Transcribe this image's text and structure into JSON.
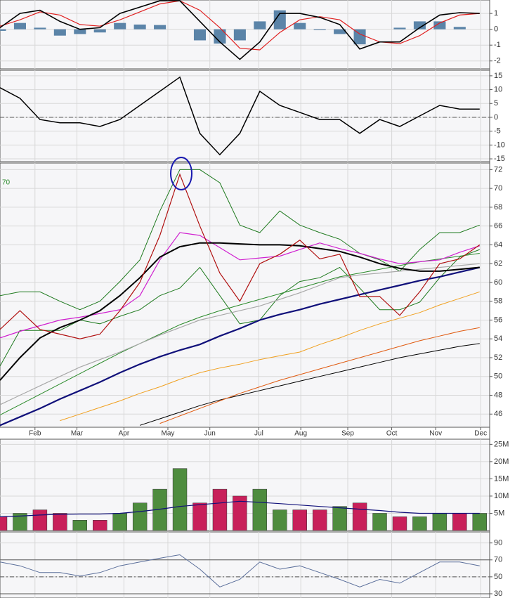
{
  "chart_data": [
    {
      "type": "line",
      "xlim": [
        0,
        49
      ],
      "ylim": [
        -2.5,
        1.85
      ],
      "yticks": [
        1,
        0,
        -1,
        -2
      ],
      "x": [
        0,
        2,
        4,
        6,
        8,
        10,
        12,
        14,
        16,
        18,
        20,
        22,
        24,
        26,
        28,
        30,
        32,
        34,
        36,
        38,
        40,
        42,
        44,
        46,
        48
      ],
      "ref_lines": [],
      "series": [
        {
          "type": "bar",
          "color": "#5b84a8",
          "values": [
            -0.1,
            0.4,
            0.1,
            -0.4,
            -0.3,
            -0.2,
            0.4,
            0.3,
            0.27,
            0,
            -0.7,
            -0.9,
            -0.7,
            0.5,
            1.2,
            0.4,
            -0.05,
            -0.3,
            -0.95,
            0,
            0.1,
            0.5,
            0.5,
            0.15,
            0
          ]
        },
        {
          "type": "line",
          "color": "#e02020",
          "width": 1.2,
          "values": [
            0.2,
            0.6,
            1.1,
            0.9,
            0.3,
            0.2,
            0.6,
            1.1,
            1.6,
            1.8,
            1.2,
            0.1,
            -1.2,
            -1.3,
            -0.2,
            0.6,
            0.8,
            0.6,
            -0.3,
            -0.8,
            -0.9,
            -0.4,
            0.4,
            0.9,
            1
          ]
        },
        {
          "type": "line",
          "color": "#000000",
          "width": 1.6,
          "values": [
            0.1,
            1,
            1.2,
            0.5,
            0,
            0.1,
            1,
            1.4,
            1.8,
            1.8,
            0.5,
            -0.8,
            -1.9,
            -0.8,
            1,
            1,
            0.75,
            0.3,
            -1.25,
            -0.8,
            -0.8,
            0.1,
            0.9,
            1.05,
            1
          ]
        }
      ]
    },
    {
      "type": "line",
      "xlim": [
        0,
        49
      ],
      "ylim": [
        -16,
        17
      ],
      "yticks": [
        15,
        10,
        5,
        0,
        -5,
        -10,
        -15
      ],
      "x": [
        0,
        2,
        4,
        6,
        8,
        10,
        12,
        14,
        16,
        18,
        20,
        22,
        24,
        26,
        28,
        30,
        32,
        34,
        36,
        38,
        40,
        42,
        44,
        46,
        48
      ],
      "ref_lines": [
        {
          "value": 0,
          "style": "dashdot"
        }
      ],
      "series": [
        {
          "type": "line",
          "color": "#000000",
          "width": 1.5,
          "values": [
            10.7,
            6.9,
            -0.8,
            -2,
            -2,
            -3.3,
            -0.8,
            4.3,
            9.4,
            14.5,
            -5.8,
            -13.5,
            -5.8,
            9.4,
            4.3,
            1.8,
            -0.8,
            -0.8,
            -5.8,
            -0.8,
            -3.3,
            0.5,
            4.3,
            3,
            3
          ]
        }
      ]
    },
    {
      "type": "line",
      "xlim": [
        0,
        49
      ],
      "ylim": [
        44.6,
        72.7
      ],
      "yticks": [
        46,
        48,
        50,
        52,
        54,
        56,
        58,
        60,
        62,
        64,
        66,
        68,
        70,
        72
      ],
      "annotation": "70",
      "xticks": [
        {
          "value": 3.5,
          "label": "Feb"
        },
        {
          "value": 7.7,
          "label": "Mar"
        },
        {
          "value": 12.4,
          "label": "Apr"
        },
        {
          "value": 16.8,
          "label": "May"
        },
        {
          "value": 21,
          "label": "Jun"
        },
        {
          "value": 25.9,
          "label": "Jul"
        },
        {
          "value": 30.1,
          "label": "Aug"
        },
        {
          "value": 34.8,
          "label": "Sep"
        },
        {
          "value": 39.2,
          "label": "Oct"
        },
        {
          "value": 43.6,
          "label": "Nov"
        },
        {
          "value": 48.1,
          "label": "Dec"
        }
      ],
      "x": [
        0,
        2,
        4,
        6,
        8,
        10,
        12,
        14,
        16,
        18,
        20,
        22,
        24,
        26,
        28,
        30,
        32,
        34,
        36,
        38,
        40,
        42,
        44,
        46,
        48
      ],
      "ref_lines": [],
      "series": [
        {
          "type": "line",
          "color": "#1f7a1f",
          "width": 1,
          "values": [
            58.6,
            59,
            59,
            58,
            57.1,
            58,
            60.1,
            62.4,
            67.6,
            72,
            72,
            70.6,
            66.1,
            65.3,
            67.6,
            66.1,
            65.3,
            64.6,
            63.1,
            62.4,
            61.2,
            63.5,
            65.3,
            65.3,
            66.1
          ]
        },
        {
          "type": "line",
          "color": "#1f7a1f",
          "width": 1,
          "values": [
            51.1,
            54.9,
            54.9,
            54.9,
            56,
            55.6,
            56.4,
            57.1,
            58.6,
            59.4,
            61.6,
            58.6,
            55.6,
            56,
            58.6,
            60.1,
            60.5,
            61.6,
            59.4,
            57.1,
            57.1,
            57.9,
            60.5,
            62.7,
            63.5
          ]
        },
        {
          "type": "line",
          "color": "#000000",
          "width": 1,
          "values": [
            null,
            null,
            null,
            null,
            null,
            null,
            null,
            44.8,
            45.5,
            46.2,
            46.9,
            47.5,
            48,
            48.5,
            49,
            49.5,
            50,
            50.5,
            51,
            51.5,
            52,
            52.4,
            52.8,
            53.2,
            53.5
          ]
        },
        {
          "type": "line",
          "color": "#e05a10",
          "width": 1,
          "values": [
            null,
            null,
            null,
            null,
            null,
            null,
            null,
            null,
            45,
            45.8,
            46.6,
            47.4,
            48.2,
            48.9,
            49.6,
            50.2,
            50.8,
            51.4,
            52,
            52.6,
            53.2,
            53.8,
            54.3,
            54.8,
            55.2
          ]
        },
        {
          "type": "line",
          "color": "#f0a020",
          "width": 1,
          "values": [
            null,
            null,
            null,
            45.3,
            46,
            46.7,
            47.4,
            48.2,
            48.9,
            49.7,
            50.4,
            50.9,
            51.3,
            51.8,
            52.2,
            52.6,
            53.4,
            54.1,
            54.9,
            55.6,
            56.2,
            56.8,
            57.6,
            58.3,
            59
          ]
        },
        {
          "type": "line",
          "color": "#2a8a2a",
          "width": 1,
          "values": [
            45.9,
            47,
            48.1,
            49.2,
            50.3,
            51.4,
            52.5,
            53.5,
            54.5,
            55.5,
            56.3,
            57,
            57.6,
            58.2,
            58.8,
            59.4,
            60,
            60.6,
            61,
            61.4,
            61.8,
            62.2,
            62.5,
            62.8,
            63.1
          ]
        },
        {
          "type": "line",
          "color": "#a8a8a8",
          "width": 1.2,
          "values": [
            47,
            48,
            49,
            50,
            51,
            51.8,
            52.6,
            53.5,
            54.4,
            55.2,
            56,
            56.5,
            57,
            57.5,
            58.2,
            58.9,
            59.7,
            60.5,
            60.8,
            61,
            61.2,
            61.4,
            61.6,
            61.8,
            62
          ]
        },
        {
          "type": "line",
          "color": "#10107a",
          "width": 2.2,
          "values": [
            44.8,
            45.7,
            46.6,
            47.6,
            48.5,
            49.4,
            50.4,
            51.3,
            52.1,
            52.8,
            53.4,
            54.3,
            55.1,
            56,
            56.6,
            57.1,
            57.7,
            58.2,
            58.7,
            59.2,
            59.7,
            60.2,
            60.6,
            61.1,
            61.6
          ]
        },
        {
          "type": "line",
          "color": "#d020d0",
          "width": 1.2,
          "values": [
            54.1,
            54.8,
            55.4,
            56,
            56.3,
            56.7,
            57.1,
            58.6,
            62.4,
            65.3,
            65,
            63.7,
            62.4,
            62.6,
            62.8,
            63.5,
            64.2,
            63.6,
            63.1,
            62.5,
            62,
            62.2,
            62.4,
            63.2,
            63.9
          ]
        },
        {
          "type": "line",
          "color": "#000000",
          "width": 2,
          "values": [
            49.6,
            52,
            54.1,
            55.2,
            56,
            57,
            58.6,
            60.5,
            62.7,
            63.8,
            64.2,
            64.2,
            64.1,
            64,
            64,
            63.9,
            63.6,
            63.3,
            62.7,
            62,
            61.5,
            61.2,
            61.2,
            61.4,
            61.6
          ]
        },
        {
          "type": "line",
          "color": "#b01010",
          "width": 1.2,
          "values": [
            55,
            57,
            55,
            54.5,
            54,
            54.5,
            57,
            60,
            65,
            71.5,
            66,
            61,
            58,
            62,
            63,
            64.5,
            62.5,
            63,
            58.5,
            58.5,
            56.5,
            59,
            62,
            62.5,
            64
          ]
        }
      ]
    },
    {
      "type": "bar",
      "xlim": [
        0,
        49
      ],
      "ylim": [
        0,
        26.5
      ],
      "yticks": [
        {
          "value": 5,
          "label": "5M"
        },
        {
          "value": 10,
          "label": "10M"
        },
        {
          "value": 15,
          "label": "15M"
        },
        {
          "value": 20,
          "label": "20M"
        },
        {
          "value": 25,
          "label": "25M"
        }
      ],
      "x": [
        0,
        2,
        4,
        6,
        8,
        10,
        12,
        14,
        16,
        18,
        20,
        22,
        24,
        26,
        28,
        30,
        32,
        34,
        36,
        38,
        40,
        42,
        44,
        46,
        48
      ],
      "ref_lines": [],
      "values": [
        4,
        5,
        6,
        5,
        3,
        3,
        5,
        8,
        12,
        18,
        8,
        12,
        10,
        12,
        6,
        6,
        6,
        7,
        8,
        5,
        4,
        4,
        5,
        5,
        5
      ],
      "colors": [
        "#c8205a",
        "#4e8c3e",
        "#c8205a",
        "#c8205a",
        "#4e8c3e",
        "#c8205a",
        "#4e8c3e",
        "#4e8c3e",
        "#4e8c3e",
        "#4e8c3e",
        "#c8205a",
        "#c8205a",
        "#c8205a",
        "#4e8c3e",
        "#4e8c3e",
        "#c8205a",
        "#c8205a",
        "#4e8c3e",
        "#c8205a",
        "#4e8c3e",
        "#c8205a",
        "#4e8c3e",
        "#4e8c3e",
        "#c8205a",
        "#4e8c3e"
      ],
      "series": [
        {
          "type": "line",
          "color": "#10107a",
          "width": 1.2,
          "values": [
            4,
            4.2,
            4.5,
            4.7,
            4.8,
            4.8,
            5,
            5.5,
            6.2,
            7,
            7.5,
            8,
            8.5,
            8.2,
            7.8,
            7.4,
            7,
            6.6,
            6.2,
            5.8,
            5.3,
            5,
            5,
            5,
            5
          ]
        }
      ]
    },
    {
      "type": "line",
      "xlim": [
        0,
        49
      ],
      "ylim": [
        25,
        103
      ],
      "yticks": [
        90,
        70,
        50,
        30
      ],
      "x": [
        0,
        2,
        4,
        6,
        8,
        10,
        12,
        14,
        16,
        18,
        20,
        22,
        24,
        26,
        28,
        30,
        32,
        34,
        36,
        38,
        40,
        42,
        44,
        46,
        48
      ],
      "ref_lines": [
        {
          "value": 70,
          "style": "solid"
        },
        {
          "value": 50,
          "style": "dashdot"
        },
        {
          "value": 30,
          "style": "solid"
        }
      ],
      "series": [
        {
          "type": "line",
          "color": "#5a6e9a",
          "width": 1,
          "values": [
            67.5,
            63,
            55,
            55,
            51,
            55,
            63,
            67.5,
            72,
            76,
            59,
            38,
            47,
            67.5,
            59,
            63,
            55,
            47,
            38,
            47,
            42.5,
            55,
            67.5,
            67.5,
            63
          ]
        }
      ]
    }
  ]
}
